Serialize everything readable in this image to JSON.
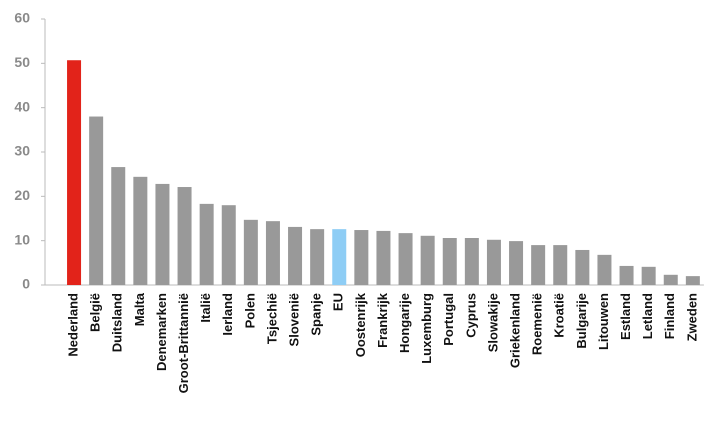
{
  "chart_data": {
    "type": "bar",
    "categories": [
      "Nederland",
      "België",
      "Duitsland",
      "Malta",
      "Denemarken",
      "Groot-Brittannië",
      "Italië",
      "Ierland",
      "Polen",
      "Tsjechië",
      "Slovenië",
      "Spanje",
      "EU",
      "Oostenrijk",
      "Frankrijk",
      "Hongarije",
      "Luxemburg",
      "Portugal",
      "Cyprus",
      "Slowakije",
      "Griekenland",
      "Roemenië",
      "Kroatië",
      "Bulgarije",
      "Litouwen",
      "Estland",
      "Letland",
      "Finland",
      "Zweden"
    ],
    "values": [
      50.7,
      38,
      26.6,
      24.4,
      22.8,
      22.1,
      18.3,
      18,
      14.7,
      14.4,
      13.1,
      12.6,
      12.6,
      12.4,
      12.2,
      11.7,
      11.1,
      10.6,
      10.6,
      10.2,
      9.9,
      9,
      9,
      7.9,
      6.8,
      4.3,
      4.1,
      2.3,
      2
    ],
    "colors": [
      "#e2231a",
      "#999999",
      "#999999",
      "#999999",
      "#999999",
      "#999999",
      "#999999",
      "#999999",
      "#999999",
      "#999999",
      "#999999",
      "#999999",
      "#8ecdf5",
      "#999999",
      "#999999",
      "#999999",
      "#999999",
      "#999999",
      "#999999",
      "#999999",
      "#999999",
      "#999999",
      "#999999",
      "#999999",
      "#999999",
      "#999999",
      "#999999",
      "#999999",
      "#999999"
    ],
    "ylim": [
      0,
      60
    ],
    "yticks": [
      0,
      10,
      20,
      30,
      40,
      50,
      60
    ],
    "grid": false
  }
}
